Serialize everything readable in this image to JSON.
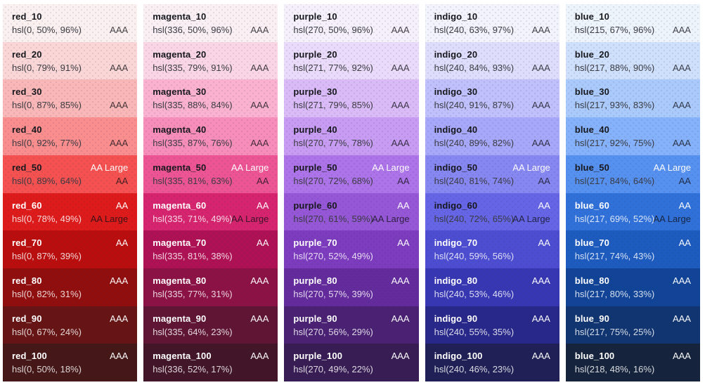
{
  "palette": {
    "columns": [
      {
        "name": "red",
        "shades": [
          {
            "label": "red_10",
            "hsl": "hsl(0, 50%, 96%)",
            "white_contrast": "",
            "black_contrast": "AAA",
            "fg": "dark"
          },
          {
            "label": "red_20",
            "hsl": "hsl(0, 79%, 91%)",
            "white_contrast": "",
            "black_contrast": "AAA",
            "fg": "dark"
          },
          {
            "label": "red_30",
            "hsl": "hsl(0, 87%, 85%)",
            "white_contrast": "",
            "black_contrast": "AAA",
            "fg": "dark"
          },
          {
            "label": "red_40",
            "hsl": "hsl(0, 92%, 77%)",
            "white_contrast": "",
            "black_contrast": "AAA",
            "fg": "dark"
          },
          {
            "label": "red_50",
            "hsl": "hsl(0, 89%, 64%)",
            "white_contrast": "AA Large",
            "black_contrast": "AA",
            "fg": "dark"
          },
          {
            "label": "red_60",
            "hsl": "hsl(0, 78%, 49%)",
            "white_contrast": "AA",
            "black_contrast": "AA Large",
            "fg": "light"
          },
          {
            "label": "red_70",
            "hsl": "hsl(0, 87%, 39%)",
            "white_contrast": "AA",
            "black_contrast": "",
            "fg": "light"
          },
          {
            "label": "red_80",
            "hsl": "hsl(0, 82%, 31%)",
            "white_contrast": "AAA",
            "black_contrast": "",
            "fg": "light"
          },
          {
            "label": "red_90",
            "hsl": "hsl(0, 67%, 24%)",
            "white_contrast": "AAA",
            "black_contrast": "",
            "fg": "light"
          },
          {
            "label": "red_100",
            "hsl": "hsl(0, 50%, 18%)",
            "white_contrast": "AAA",
            "black_contrast": "",
            "fg": "light"
          }
        ]
      },
      {
        "name": "magenta",
        "shades": [
          {
            "label": "magenta_10",
            "hsl": "hsl(336, 50%, 96%)",
            "white_contrast": "",
            "black_contrast": "AAA",
            "fg": "dark"
          },
          {
            "label": "magenta_20",
            "hsl": "hsl(335, 79%, 91%)",
            "white_contrast": "",
            "black_contrast": "AAA",
            "fg": "dark"
          },
          {
            "label": "magenta_30",
            "hsl": "hsl(335, 88%, 84%)",
            "white_contrast": "",
            "black_contrast": "AAA",
            "fg": "dark"
          },
          {
            "label": "magenta_40",
            "hsl": "hsl(335, 87%, 76%)",
            "white_contrast": "",
            "black_contrast": "AAA",
            "fg": "dark"
          },
          {
            "label": "magenta_50",
            "hsl": "hsl(335, 81%, 63%)",
            "white_contrast": "AA Large",
            "black_contrast": "AA",
            "fg": "dark"
          },
          {
            "label": "magenta_60",
            "hsl": "hsl(335, 71%, 49%)",
            "white_contrast": "AA",
            "black_contrast": "AA Large",
            "fg": "light"
          },
          {
            "label": "magenta_70",
            "hsl": "hsl(335, 81%, 38%)",
            "white_contrast": "AA",
            "black_contrast": "",
            "fg": "light"
          },
          {
            "label": "magenta_80",
            "hsl": "hsl(335, 77%, 31%)",
            "white_contrast": "AAA",
            "black_contrast": "",
            "fg": "light"
          },
          {
            "label": "magenta_90",
            "hsl": "hsl(335, 64%, 23%)",
            "white_contrast": "AAA",
            "black_contrast": "",
            "fg": "light"
          },
          {
            "label": "magenta_100",
            "hsl": "hsl(336, 52%, 17%)",
            "white_contrast": "AAA",
            "black_contrast": "",
            "fg": "light"
          }
        ]
      },
      {
        "name": "purple",
        "shades": [
          {
            "label": "purple_10",
            "hsl": "hsl(270, 50%, 96%)",
            "white_contrast": "",
            "black_contrast": "AAA",
            "fg": "dark"
          },
          {
            "label": "purple_20",
            "hsl": "hsl(271, 77%, 92%)",
            "white_contrast": "",
            "black_contrast": "AAA",
            "fg": "dark"
          },
          {
            "label": "purple_30",
            "hsl": "hsl(271, 79%, 85%)",
            "white_contrast": "",
            "black_contrast": "AAA",
            "fg": "dark"
          },
          {
            "label": "purple_40",
            "hsl": "hsl(270, 77%, 78%)",
            "white_contrast": "",
            "black_contrast": "AAA",
            "fg": "dark"
          },
          {
            "label": "purple_50",
            "hsl": "hsl(270, 72%, 68%)",
            "white_contrast": "AA Large",
            "black_contrast": "AA",
            "fg": "dark"
          },
          {
            "label": "purple_60",
            "hsl": "hsl(270, 61%, 59%)",
            "white_contrast": "AA",
            "black_contrast": "AA Large",
            "fg": "dark"
          },
          {
            "label": "purple_70",
            "hsl": "hsl(270, 52%, 49%)",
            "white_contrast": "AA",
            "black_contrast": "",
            "fg": "light"
          },
          {
            "label": "purple_80",
            "hsl": "hsl(270, 57%, 39%)",
            "white_contrast": "AAA",
            "black_contrast": "",
            "fg": "light"
          },
          {
            "label": "purple_90",
            "hsl": "hsl(270, 56%, 29%)",
            "white_contrast": "AAA",
            "black_contrast": "",
            "fg": "light"
          },
          {
            "label": "purple_100",
            "hsl": "hsl(270, 49%, 22%)",
            "white_contrast": "AAA",
            "black_contrast": "",
            "fg": "light"
          }
        ]
      },
      {
        "name": "indigo",
        "shades": [
          {
            "label": "indigo_10",
            "hsl": "hsl(240, 63%, 97%)",
            "white_contrast": "",
            "black_contrast": "AAA",
            "fg": "dark"
          },
          {
            "label": "indigo_20",
            "hsl": "hsl(240, 84%, 93%)",
            "white_contrast": "",
            "black_contrast": "AAA",
            "fg": "dark"
          },
          {
            "label": "indigo_30",
            "hsl": "hsl(240, 91%, 87%)",
            "white_contrast": "",
            "black_contrast": "AAA",
            "fg": "dark"
          },
          {
            "label": "indigo_40",
            "hsl": "hsl(240, 89%, 82%)",
            "white_contrast": "",
            "black_contrast": "AAA",
            "fg": "dark"
          },
          {
            "label": "indigo_50",
            "hsl": "hsl(240, 81%, 74%)",
            "white_contrast": "AA Large",
            "black_contrast": "AA",
            "fg": "dark"
          },
          {
            "label": "indigo_60",
            "hsl": "hsl(240, 72%, 65%)",
            "white_contrast": "AA",
            "black_contrast": "AA Large",
            "fg": "dark"
          },
          {
            "label": "indigo_70",
            "hsl": "hsl(240, 59%, 56%)",
            "white_contrast": "AA",
            "black_contrast": "",
            "fg": "light"
          },
          {
            "label": "indigo_80",
            "hsl": "hsl(240, 53%, 46%)",
            "white_contrast": "AAA",
            "black_contrast": "",
            "fg": "light"
          },
          {
            "label": "indigo_90",
            "hsl": "hsl(240, 55%, 35%)",
            "white_contrast": "AAA",
            "black_contrast": "",
            "fg": "light"
          },
          {
            "label": "indigo_100",
            "hsl": "hsl(240, 46%, 23%)",
            "white_contrast": "AAA",
            "black_contrast": "",
            "fg": "light"
          }
        ]
      },
      {
        "name": "blue",
        "shades": [
          {
            "label": "blue_10",
            "hsl": "hsl(215, 67%, 96%)",
            "white_contrast": "",
            "black_contrast": "AAA",
            "fg": "dark"
          },
          {
            "label": "blue_20",
            "hsl": "hsl(217, 88%, 90%)",
            "white_contrast": "",
            "black_contrast": "AAA",
            "fg": "dark"
          },
          {
            "label": "blue_30",
            "hsl": "hsl(217, 93%, 83%)",
            "white_contrast": "",
            "black_contrast": "AAA",
            "fg": "dark"
          },
          {
            "label": "blue_40",
            "hsl": "hsl(217, 92%, 75%)",
            "white_contrast": "",
            "black_contrast": "AAA",
            "fg": "dark"
          },
          {
            "label": "blue_50",
            "hsl": "hsl(217, 84%, 64%)",
            "white_contrast": "AA Large",
            "black_contrast": "AA",
            "fg": "dark"
          },
          {
            "label": "blue_60",
            "hsl": "hsl(217, 69%, 52%)",
            "white_contrast": "AA",
            "black_contrast": "AA Large",
            "fg": "light"
          },
          {
            "label": "blue_70",
            "hsl": "hsl(217, 74%, 43%)",
            "white_contrast": "AA",
            "black_contrast": "",
            "fg": "light"
          },
          {
            "label": "blue_80",
            "hsl": "hsl(217, 80%, 33%)",
            "white_contrast": "AAA",
            "black_contrast": "",
            "fg": "light"
          },
          {
            "label": "blue_90",
            "hsl": "hsl(217, 75%, 25%)",
            "white_contrast": "AAA",
            "black_contrast": "",
            "fg": "light"
          },
          {
            "label": "blue_100",
            "hsl": "hsl(218, 48%, 16%)",
            "white_contrast": "AAA",
            "black_contrast": "",
            "fg": "light"
          }
        ]
      }
    ]
  },
  "colors": {
    "page_background": "#ffffff",
    "dark_text": "#17181d",
    "dark_muted_text": "#3a3b41",
    "light_text": "#ffffff"
  }
}
